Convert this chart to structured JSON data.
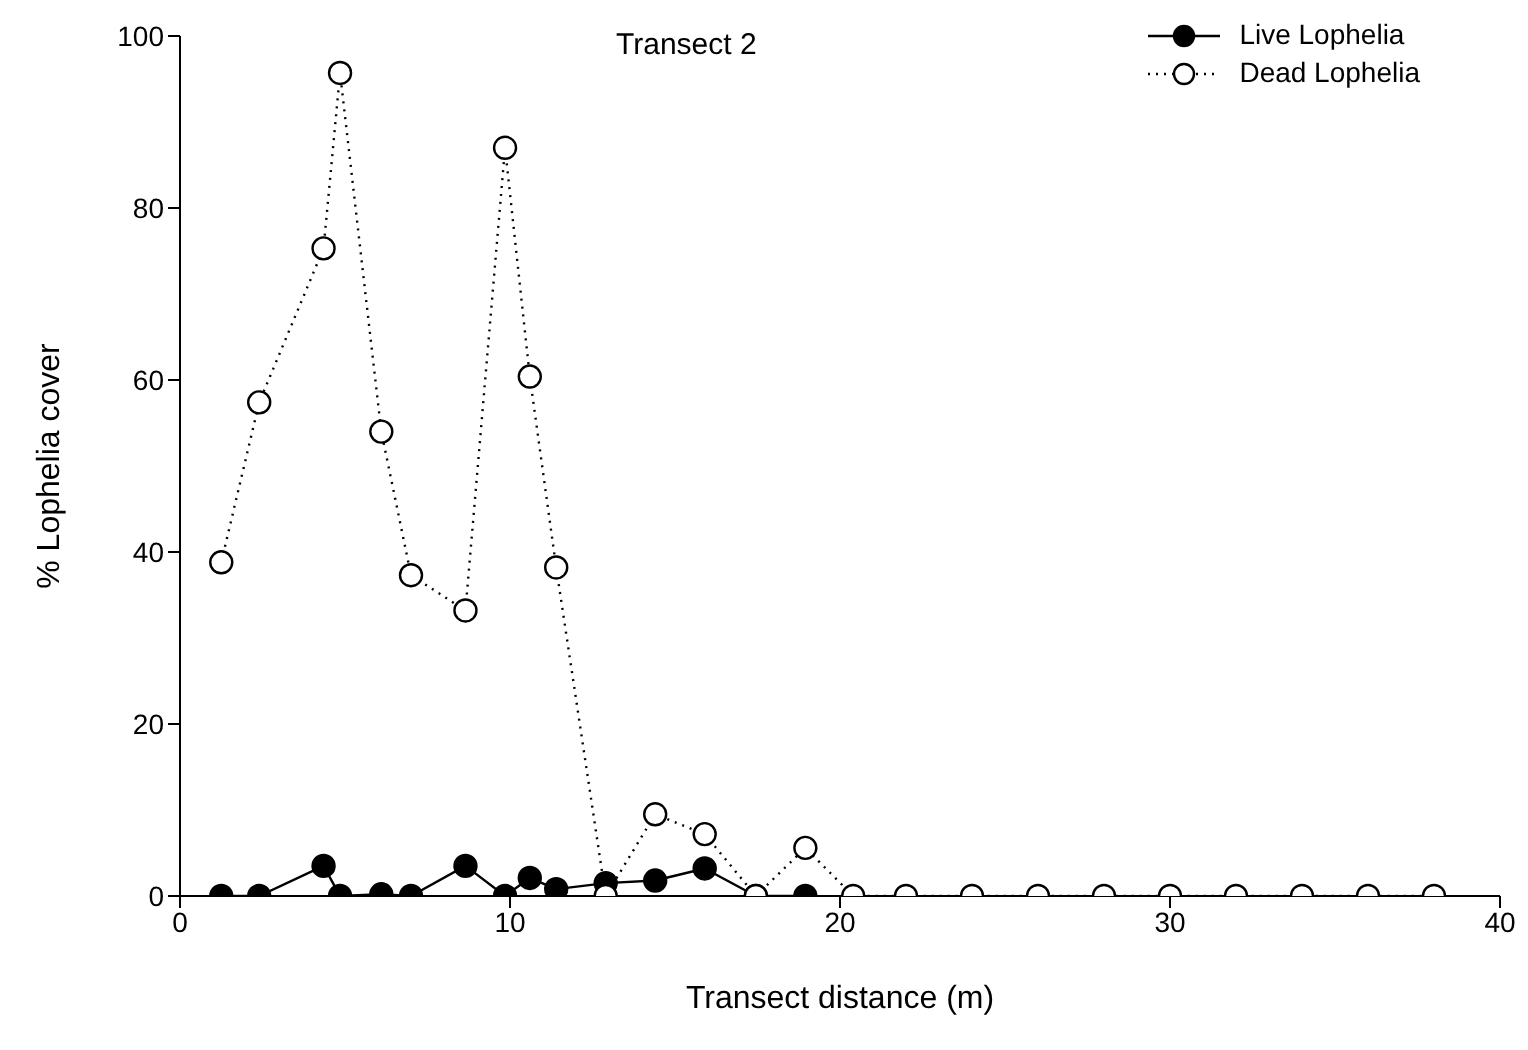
{
  "chart_data": {
    "type": "line",
    "title": "Transect 2",
    "xlabel": "Transect distance (m)",
    "ylabel": "% Lophelia cover",
    "xlim": [
      0,
      40
    ],
    "xticks": [
      0,
      10,
      20,
      30,
      40
    ],
    "ylim": [
      0,
      100
    ],
    "yticks": [
      0,
      20,
      40,
      60,
      80,
      100
    ],
    "legend": "top right",
    "series": [
      {
        "name": "Live Lophelia",
        "color": "#000000",
        "marker": "circle",
        "line_style": "solid",
        "x": [
          1.25,
          2.4,
          4.35,
          4.85,
          6.1,
          7.0,
          8.65,
          9.85,
          10.6,
          11.4,
          12.9,
          14.4,
          15.9,
          17.45,
          18.95
        ],
        "values": [
          0,
          0,
          3.5,
          0,
          0.2,
          0,
          3.5,
          0,
          2.1,
          0.8,
          1.5,
          1.8,
          3.2,
          0,
          0
        ]
      },
      {
        "name": "Dead Lophelia",
        "color": "#000000",
        "marker": "circle",
        "line_style": "dotted",
        "x": [
          1.25,
          2.4,
          4.35,
          4.85,
          6.1,
          7.0,
          8.65,
          9.85,
          10.6,
          11.4,
          12.9,
          14.4,
          15.9,
          17.45,
          18.95,
          20.4,
          22,
          24,
          26,
          28,
          30,
          32,
          34,
          36,
          38
        ],
        "values": [
          38.8,
          57.4,
          75.3,
          95.7,
          54.0,
          37.3,
          33.2,
          87.0,
          60.4,
          38.2,
          0,
          9.5,
          7.2,
          0,
          5.6,
          0,
          0,
          0,
          0,
          0,
          0,
          0,
          0,
          0,
          0
        ]
      }
    ]
  }
}
